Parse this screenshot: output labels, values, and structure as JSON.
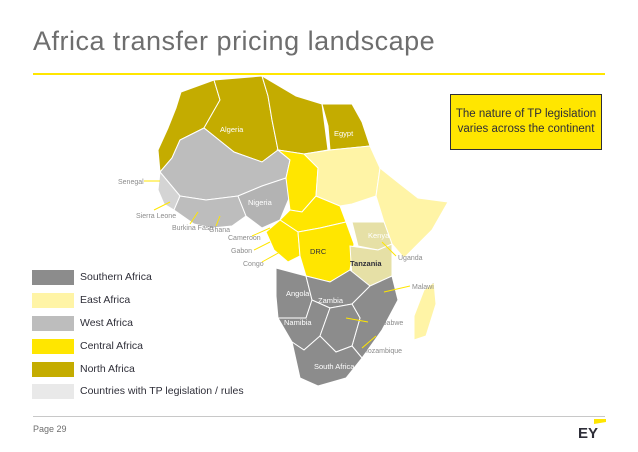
{
  "page": {
    "title": "Africa transfer pricing landscape",
    "page_number": "Page 29",
    "logo_text": "EY"
  },
  "callout": {
    "text": "The nature of TP legislation varies across the continent"
  },
  "colors": {
    "southern": "#8c8c8c",
    "east": "#fff4a6",
    "west": "#bdbdbd",
    "central": "#ffe600",
    "north": "#c4ac00",
    "tp_rules": "#e9e9e9",
    "accent": "#ffe600"
  },
  "legend": [
    {
      "label": "Southern Africa",
      "color": "#8c8c8c"
    },
    {
      "label": "East Africa",
      "color": "#fff4a6"
    },
    {
      "label": "West Africa",
      "color": "#bdbdbd"
    },
    {
      "label": "Central Africa",
      "color": "#ffe600"
    },
    {
      "label": "North Africa",
      "color": "#c4ac00"
    },
    {
      "label": "Countries with TP legislation / rules",
      "color": "#e9e9e9"
    }
  ],
  "countries": {
    "algeria": "Algeria",
    "egypt": "Egypt",
    "senegal": "Senegal",
    "sierra_leone": "Sierra Leone",
    "burkina_faso": "Burkina Faso",
    "ghana": "Ghana",
    "nigeria": "Nigeria",
    "cameroon": "Cameroon",
    "gabon": "Gabon",
    "congo": "Congo",
    "drc": "DRC",
    "kenya": "Kenya",
    "uganda": "Uganda",
    "tanzania": "Tanzania",
    "malawi": "Malawi",
    "angola": "Angola",
    "zambia": "Zambia",
    "namibia": "Namibia",
    "zimbabwe": "Zimbabwe",
    "mozambique": "Mozambique",
    "south_africa": "South Africa"
  }
}
